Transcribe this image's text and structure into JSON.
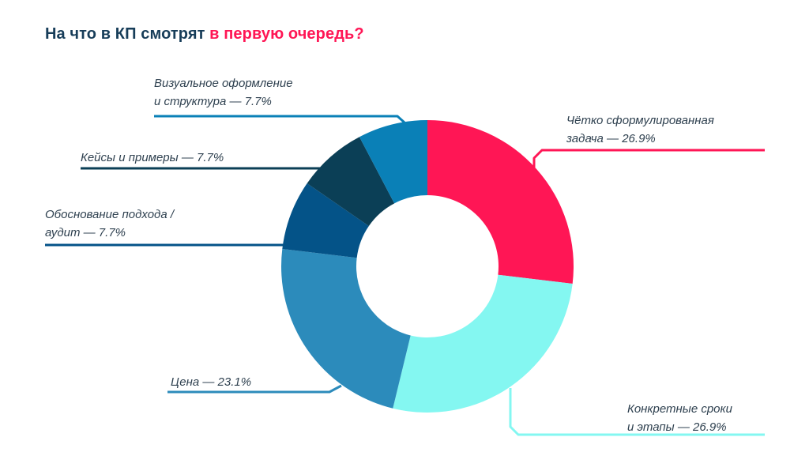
{
  "title": {
    "part1": "На что в КП смотрят ",
    "part2": "в первую очередь?"
  },
  "colors": {
    "title": "#173d59",
    "accent": "#ff1655"
  },
  "chart_data": {
    "type": "pie",
    "donut": true,
    "title": "На что в КП смотрят в первую очередь?",
    "unit": "%",
    "slices": [
      {
        "label_lines": [
          "Чётко сформулированная",
          "задача — 26.9%"
        ],
        "value": 26.9,
        "color": "#ff1655"
      },
      {
        "label_lines": [
          "Конкретные сроки",
          "и этапы — 26.9%"
        ],
        "value": 26.9,
        "color": "#84f7f1"
      },
      {
        "label_lines": [
          "Цена — 23.1%"
        ],
        "value": 23.1,
        "color": "#2c8bbb"
      },
      {
        "label_lines": [
          "Обоснование подхода /",
          "аудит — 7.7%"
        ],
        "value": 7.7,
        "color": "#045388"
      },
      {
        "label_lines": [
          "Кейсы и примеры  — 7.7%"
        ],
        "value": 7.7,
        "color": "#0b3f56"
      },
      {
        "label_lines": [
          "Визуальное оформление",
          "и структура  — 7.7%"
        ],
        "value": 7.7,
        "color": "#0a80b7"
      }
    ]
  }
}
